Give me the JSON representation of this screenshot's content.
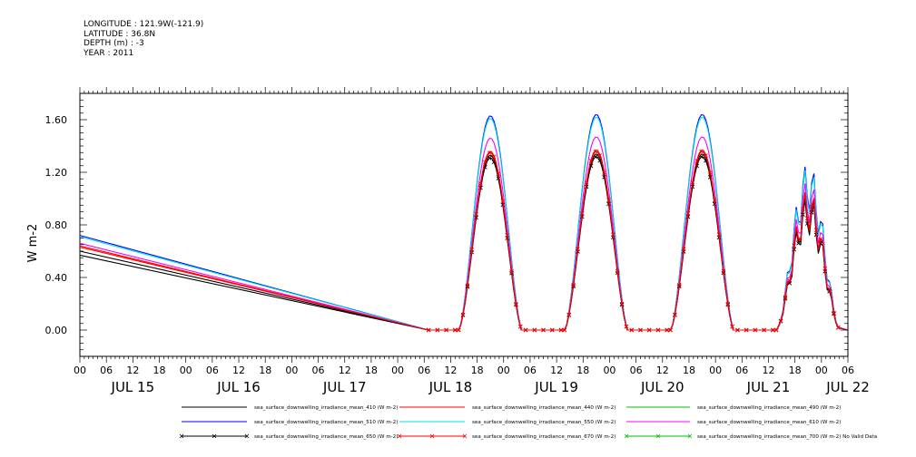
{
  "header": {
    "lines": [
      "LONGITUDE : 121.9W(-121.9)",
      "LATITUDE : 36.8N",
      "DEPTH (m) : -3",
      "YEAR : 2011"
    ]
  },
  "chart_data": {
    "type": "line",
    "ylabel": "W m-2",
    "ylim": [
      -0.2,
      1.8
    ],
    "yticks": [
      "0.00",
      "0.40",
      "0.80",
      "1.20",
      "1.60"
    ],
    "ytick_values": [
      0.0,
      0.4,
      0.8,
      1.2,
      1.6
    ],
    "x_unit": "hours since JUL 15 00:00",
    "xlim": [
      0,
      174
    ],
    "hour_tick_labels": [
      "00",
      "06",
      "12",
      "18",
      "00",
      "06",
      "12",
      "18",
      "00",
      "06",
      "12",
      "18",
      "00",
      "06",
      "12",
      "18",
      "00",
      "06",
      "12",
      "18",
      "00",
      "06",
      "12",
      "18",
      "00",
      "06",
      "12",
      "18",
      "00",
      "06"
    ],
    "day_labels": [
      "JUL 15",
      "JUL 16",
      "JUL 17",
      "JUL 18",
      "JUL 19",
      "JUL 20",
      "JUL 21",
      "JUL 22"
    ],
    "day_label_hours": [
      12,
      36,
      60,
      84,
      108,
      132,
      156,
      174
    ],
    "grid": false,
    "legend_position": "bottom",
    "no_valid_data_note": "No Valid Data",
    "series": [
      {
        "name": "sea_surface_downwelling_irradiance_mean_410 (W m-2)",
        "color": "#000000",
        "marker": false,
        "start_value": 0.6,
        "day_peaks": [
          1.33,
          1.34,
          1.34,
          1.05
        ]
      },
      {
        "name": "sea_surface_downwelling_irradiance_mean_440 (W m-2)",
        "color": "#ff0000",
        "marker": false,
        "start_value": 0.64,
        "day_peaks": [
          1.36,
          1.37,
          1.37,
          1.08
        ]
      },
      {
        "name": "sea_surface_downwelling_irradiance_mean_490 (W m-2)",
        "color": "#00c000",
        "marker": false,
        "start_value": null,
        "day_peaks": null
      },
      {
        "name": "sea_surface_downwelling_irradiance_mean_510 (W m-2)",
        "color": "#0000ff",
        "marker": false,
        "start_value": 0.72,
        "day_peaks": [
          1.63,
          1.64,
          1.64,
          1.28
        ]
      },
      {
        "name": "sea_surface_downwelling_irradiance_mean_550 (W m-2)",
        "color": "#00e0e0",
        "marker": false,
        "start_value": 0.71,
        "day_peaks": [
          1.61,
          1.62,
          1.62,
          1.25
        ]
      },
      {
        "name": "sea_surface_downwelling_irradiance_mean_610 (W m-2)",
        "color": "#ff00ff",
        "marker": false,
        "start_value": 0.66,
        "day_peaks": [
          1.46,
          1.47,
          1.47,
          1.15
        ]
      },
      {
        "name": "sea_surface_downwelling_irradiance_mean_650 (W m-2)",
        "color": "#000000",
        "marker": true,
        "start_value": 0.57,
        "day_peaks": [
          1.31,
          1.32,
          1.32,
          1.02
        ]
      },
      {
        "name": "sea_surface_downwelling_irradiance_mean_670 (W m-2)",
        "color": "#ff0000",
        "marker": true,
        "start_value": 0.63,
        "day_peaks": [
          1.35,
          1.36,
          1.36,
          1.07
        ]
      },
      {
        "name": "sea_surface_downwelling_irradiance_mean_700 (W m-2)",
        "color": "#00c000",
        "marker": true,
        "start_value": null,
        "day_peaks": null
      }
    ],
    "segment_points": {
      "ramp_hours": [
        0,
        79
      ],
      "zero_hours": [
        [
          79,
          86
        ],
        [
          100,
          110
        ],
        [
          124,
          134
        ],
        [
          148,
          158
        ]
      ],
      "day_centers": [
        93,
        117,
        141,
        165
      ],
      "day_half_width": 7.2,
      "last_hour": 174
    }
  }
}
